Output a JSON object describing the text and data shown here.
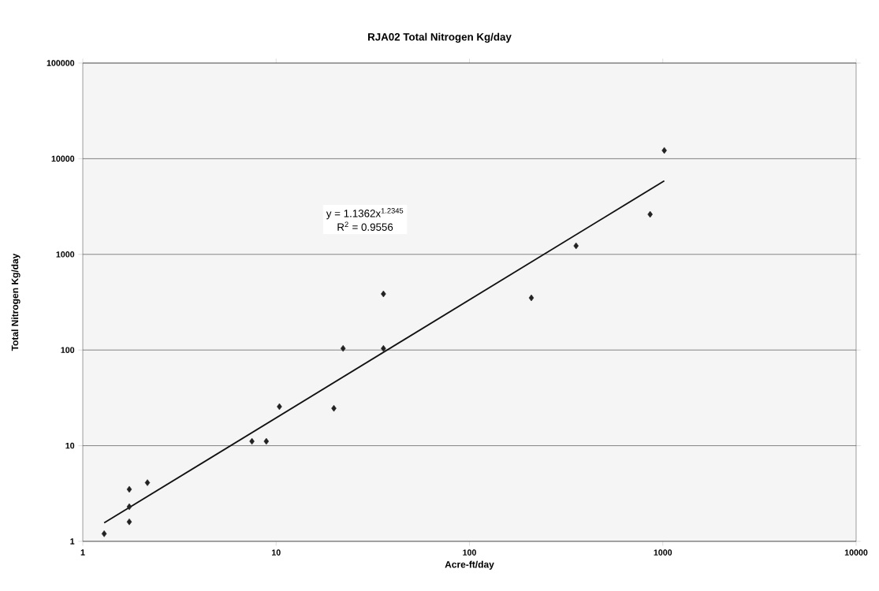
{
  "chart_data": {
    "type": "scatter",
    "title": "RJA02 Total Nitrogen Kg/day",
    "xlabel": "Acre-ft/day",
    "ylabel": "Total Nitrogen Kg/day",
    "log": "xy",
    "grid": "y",
    "marker": "diamond",
    "xlim": [
      1,
      10000
    ],
    "ylim": [
      1,
      100000
    ],
    "xticks": [
      1,
      10,
      100,
      1000,
      10000
    ],
    "yticks": [
      1,
      10,
      100,
      1000,
      10000,
      100000
    ],
    "annotations": [
      "y = 1.1362x$^{1.2345}$",
      "R$^{2}$ = 0.9556"
    ],
    "series": [
      {
        "color": "#222222",
        "x": [
          1.29,
          1.74,
          1.74,
          1.74,
          2.16,
          7.5,
          8.9,
          10.4,
          19.9,
          22.2,
          35.9,
          35.9,
          209,
          356,
          860,
          1018
        ],
        "values": [
          1.2,
          1.6,
          2.3,
          3.5,
          4.1,
          11.1,
          11.1,
          25.6,
          24.6,
          104,
          104,
          386,
          351,
          1228,
          2620,
          12200
        ]
      },
      {
        "type": "line",
        "color": "#111111",
        "marker": "none",
        "x": [
          1.29,
          1018
        ],
        "values": [
          1.56,
          5870
        ]
      }
    ]
  }
}
